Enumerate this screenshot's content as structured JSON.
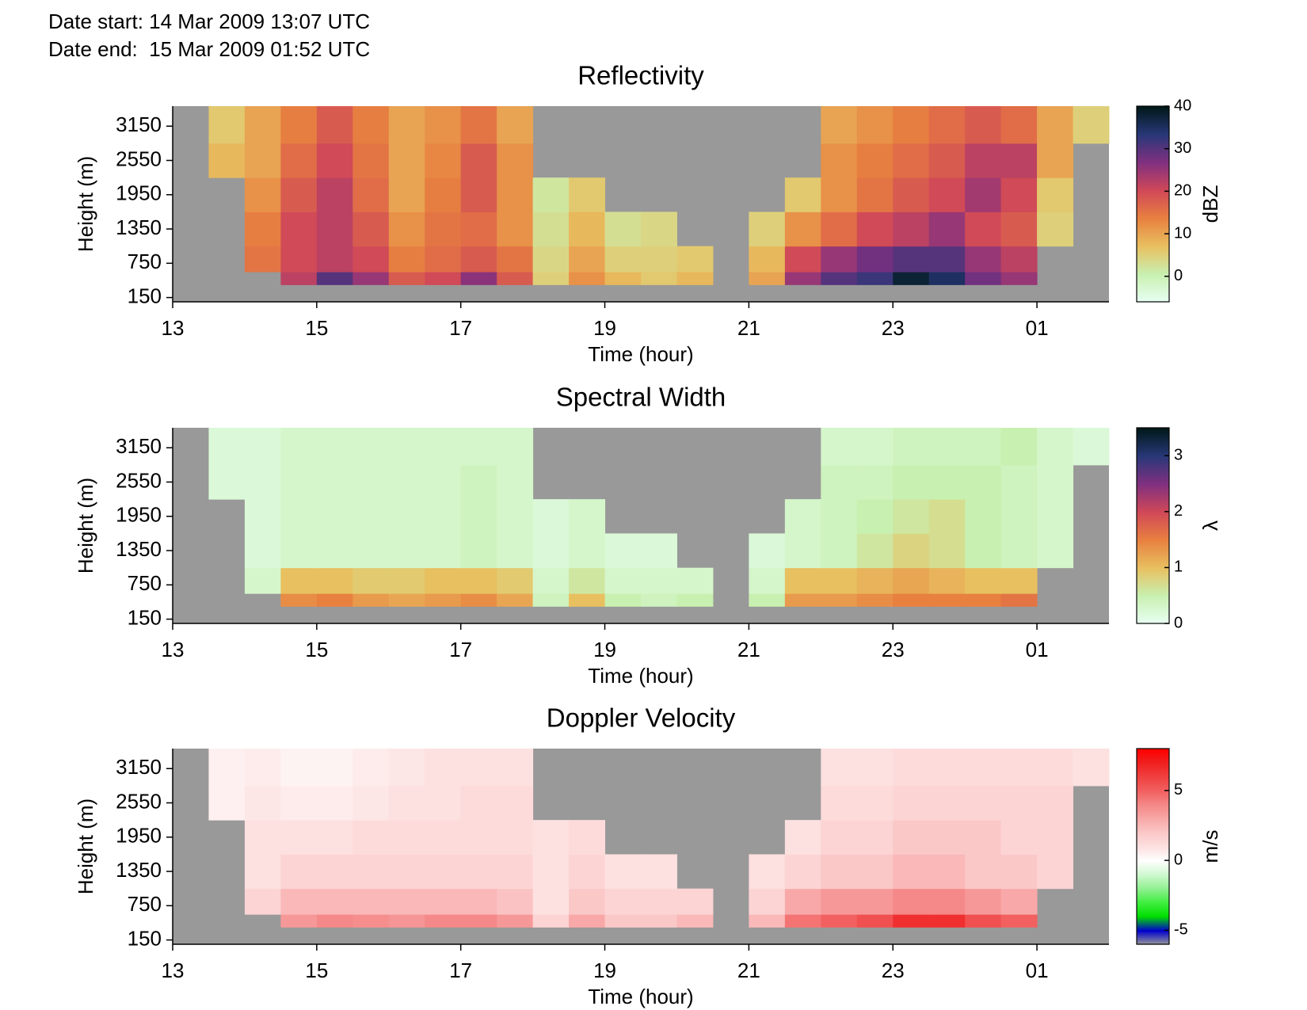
{
  "header": {
    "date_start": "Date start: 14 Mar 2009 13:07 UTC",
    "date_end": "Date end:  15 Mar 2009 01:52 UTC"
  },
  "chart_data": [
    {
      "type": "heatmap",
      "title": "Reflectivity",
      "xlabel": "Time (hour)",
      "ylabel": "Height (m)",
      "xlim": [
        13,
        26
      ],
      "xticks": [
        13,
        15,
        17,
        19,
        21,
        23,
        {
          "value": 25,
          "label": "01"
        }
      ],
      "ylim": [
        75,
        3500
      ],
      "yticks": [
        150,
        750,
        1350,
        1950,
        2550,
        3150
      ],
      "x_edges": [
        13,
        13.5,
        14,
        14.5,
        15,
        15.5,
        16,
        16.5,
        17,
        17.5,
        18,
        18.5,
        19,
        19.5,
        20,
        20.5,
        21,
        21.5,
        22,
        22.5,
        23,
        23.5,
        24,
        24.5,
        25,
        25.5,
        26
      ],
      "y_edges": [
        375,
        600,
        1050,
        1650,
        2250,
        2850,
        3500
      ],
      "null_color": "#999999",
      "values": [
        [
          null,
          null,
          null,
          22,
          30,
          25,
          18,
          20,
          26,
          18,
          5,
          12,
          8,
          6,
          8,
          null,
          10,
          25,
          30,
          32,
          38,
          35,
          28,
          25,
          null,
          null
        ],
        [
          null,
          null,
          15,
          20,
          22,
          20,
          14,
          16,
          18,
          15,
          4,
          10,
          5,
          5,
          6,
          null,
          8,
          20,
          25,
          28,
          30,
          30,
          25,
          22,
          null,
          null
        ],
        [
          null,
          null,
          14,
          20,
          22,
          18,
          12,
          15,
          16,
          12,
          3,
          8,
          3,
          4,
          null,
          null,
          5,
          12,
          16,
          20,
          22,
          25,
          20,
          18,
          5,
          null
        ],
        [
          null,
          null,
          12,
          18,
          22,
          16,
          10,
          14,
          18,
          12,
          2,
          6,
          null,
          null,
          null,
          null,
          null,
          6,
          12,
          15,
          18,
          20,
          24,
          20,
          6,
          null
        ],
        [
          null,
          8,
          10,
          16,
          20,
          15,
          10,
          13,
          18,
          12,
          null,
          null,
          null,
          null,
          null,
          null,
          null,
          null,
          12,
          14,
          16,
          18,
          22,
          22,
          10,
          null
        ],
        [
          null,
          6,
          10,
          14,
          18,
          14,
          10,
          12,
          15,
          10,
          null,
          null,
          null,
          null,
          null,
          null,
          null,
          null,
          10,
          12,
          14,
          16,
          18,
          16,
          10,
          5
        ]
      ],
      "colorbar": {
        "label": "dBZ",
        "clim": [
          -6,
          40
        ],
        "ticks": [
          0,
          10,
          20,
          30,
          40
        ],
        "colors": [
          "#e8fff4",
          "#c8f0b0",
          "#e8c060",
          "#e88040",
          "#d04858",
          "#803080",
          "#283878",
          "#001818"
        ]
      }
    },
    {
      "type": "heatmap",
      "title": "Spectral Width",
      "xlabel": "Time (hour)",
      "ylabel": "Height (m)",
      "xlim": [
        13,
        26
      ],
      "xticks": [
        13,
        15,
        17,
        19,
        21,
        23,
        {
          "value": 25,
          "label": "01"
        }
      ],
      "ylim": [
        75,
        3500
      ],
      "yticks": [
        150,
        750,
        1350,
        1950,
        2550,
        3150
      ],
      "x_edges": [
        13,
        13.5,
        14,
        14.5,
        15,
        15.5,
        16,
        16.5,
        17,
        17.5,
        18,
        18.5,
        19,
        19.5,
        20,
        20.5,
        21,
        21.5,
        22,
        22.5,
        23,
        23.5,
        24,
        24.5,
        25,
        25.5,
        26
      ],
      "y_edges": [
        375,
        600,
        1050,
        1650,
        2250,
        2850,
        3500
      ],
      "null_color": "#999999",
      "values": [
        [
          null,
          null,
          null,
          1.4,
          1.5,
          1.3,
          1.2,
          1.3,
          1.4,
          1.2,
          0.4,
          1.0,
          0.5,
          0.4,
          0.5,
          null,
          0.5,
          1.3,
          1.3,
          1.4,
          1.5,
          1.5,
          1.5,
          1.6,
          null,
          null
        ],
        [
          null,
          null,
          0.3,
          1.0,
          1.0,
          0.9,
          0.9,
          1.0,
          1.0,
          0.9,
          0.3,
          0.6,
          0.3,
          0.3,
          0.3,
          null,
          0.3,
          1.0,
          1.0,
          1.1,
          1.2,
          1.1,
          1.0,
          1.0,
          null,
          null
        ],
        [
          null,
          null,
          0.2,
          0.3,
          0.3,
          0.3,
          0.3,
          0.3,
          0.4,
          0.3,
          0.2,
          0.3,
          0.2,
          0.2,
          null,
          null,
          0.2,
          0.3,
          0.4,
          0.6,
          0.8,
          0.7,
          0.5,
          0.4,
          0.3,
          null
        ],
        [
          null,
          null,
          0.2,
          0.3,
          0.3,
          0.3,
          0.3,
          0.3,
          0.4,
          0.3,
          0.2,
          0.3,
          null,
          null,
          null,
          null,
          null,
          0.3,
          0.4,
          0.5,
          0.6,
          0.7,
          0.5,
          0.4,
          0.3,
          null
        ],
        [
          null,
          0.2,
          0.2,
          0.3,
          0.3,
          0.3,
          0.3,
          0.3,
          0.4,
          0.3,
          null,
          null,
          null,
          null,
          null,
          null,
          null,
          null,
          0.4,
          0.4,
          0.5,
          0.5,
          0.5,
          0.4,
          0.3,
          null
        ],
        [
          null,
          0.2,
          0.2,
          0.3,
          0.3,
          0.3,
          0.3,
          0.3,
          0.3,
          0.3,
          null,
          null,
          null,
          null,
          null,
          null,
          null,
          null,
          0.3,
          0.3,
          0.4,
          0.4,
          0.4,
          0.5,
          0.3,
          0.2
        ]
      ],
      "colorbar": {
        "label": "λ",
        "clim": [
          0,
          3.5
        ],
        "ticks": [
          0,
          1,
          2,
          3
        ],
        "colors": [
          "#e8fff4",
          "#c8f0b0",
          "#e8c060",
          "#e88040",
          "#d04858",
          "#803080",
          "#283878",
          "#001818"
        ]
      }
    },
    {
      "type": "heatmap",
      "title": "Doppler Velocity",
      "xlabel": "Time (hour)",
      "ylabel": "Height (m)",
      "xlim": [
        13,
        26
      ],
      "xticks": [
        13,
        15,
        17,
        19,
        21,
        23,
        {
          "value": 25,
          "label": "01"
        }
      ],
      "ylim": [
        75,
        3500
      ],
      "yticks": [
        150,
        750,
        1350,
        1950,
        2550,
        3150
      ],
      "x_edges": [
        13,
        13.5,
        14,
        14.5,
        15,
        15.5,
        16,
        16.5,
        17,
        17.5,
        18,
        18.5,
        19,
        19.5,
        20,
        20.5,
        21,
        21.5,
        22,
        22.5,
        23,
        23.5,
        24,
        24.5,
        25,
        25.5,
        26
      ],
      "y_edges": [
        375,
        600,
        1050,
        1650,
        2250,
        2850,
        3500
      ],
      "null_color": "#999999",
      "values": [
        [
          null,
          null,
          null,
          3.5,
          4,
          3.8,
          3.6,
          4,
          4,
          3.5,
          1.5,
          3,
          2,
          2,
          2.5,
          null,
          2.5,
          4.5,
          5,
          5.5,
          6.5,
          6.5,
          5.5,
          5,
          null,
          null
        ],
        [
          null,
          null,
          1.5,
          2.5,
          2.5,
          2.5,
          2.5,
          2.5,
          2.5,
          2.2,
          1,
          2,
          1.5,
          1.5,
          1.5,
          null,
          1.5,
          3,
          3.5,
          3.5,
          4,
          4,
          3.5,
          3,
          null,
          null
        ],
        [
          null,
          null,
          1,
          1.5,
          1.5,
          1.5,
          1.5,
          1.5,
          1.5,
          1.5,
          1,
          1.5,
          1,
          1,
          null,
          null,
          1,
          1.5,
          2,
          2,
          2.5,
          2.5,
          2,
          2,
          1.5,
          null
        ],
        [
          null,
          null,
          1,
          1,
          1,
          1.2,
          1.2,
          1.2,
          1.2,
          1.2,
          1,
          1.2,
          null,
          null,
          null,
          null,
          null,
          1,
          1.5,
          1.5,
          2,
          2,
          2,
          1.5,
          1.5,
          null
        ],
        [
          null,
          0.5,
          0.8,
          0.6,
          0.6,
          0.8,
          1,
          1,
          1.2,
          1.2,
          null,
          null,
          null,
          null,
          null,
          null,
          null,
          null,
          1.2,
          1.2,
          1.5,
          1.5,
          1.5,
          1.5,
          1.5,
          null
        ],
        [
          null,
          0.5,
          0.6,
          0.4,
          0.4,
          0.6,
          0.8,
          1,
          1,
          1,
          null,
          null,
          null,
          null,
          null,
          null,
          null,
          null,
          1,
          1,
          1.2,
          1.2,
          1.2,
          1.2,
          1.2,
          1
        ]
      ],
      "colorbar": {
        "label": "m/s",
        "clim": [
          -6,
          8
        ],
        "ticks": [
          -5,
          0,
          5
        ],
        "colors": [
          "#999999",
          "#0000cc",
          "#00dd00",
          "#40ee40",
          "#90f090",
          "#d0f8d0",
          "#ffffff",
          "#fde0e0",
          "#fbc8c8",
          "#f8a8a8",
          "#f58888",
          "#f26060",
          "#f04040",
          "#f02020",
          "#ff0000"
        ]
      }
    }
  ]
}
